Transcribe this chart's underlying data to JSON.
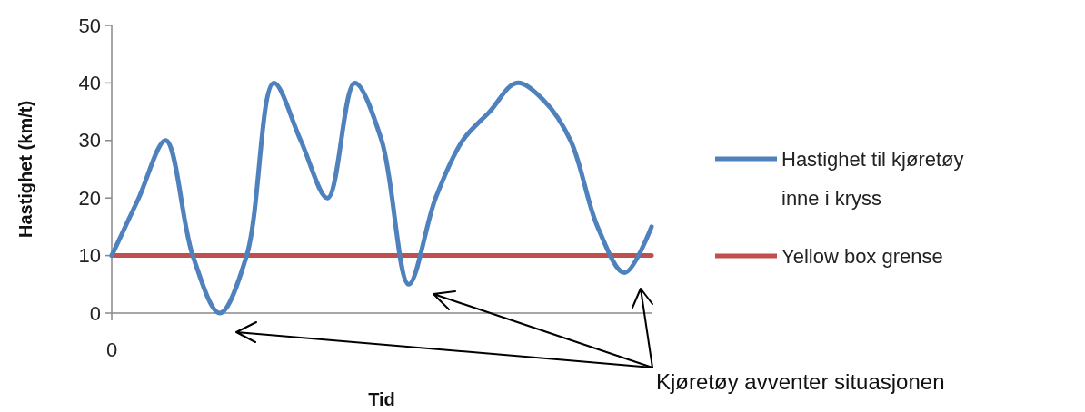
{
  "chart_data": {
    "type": "line",
    "ylabel": "Hastighet (km/t)",
    "xlabel": "Tid",
    "categories": [
      "0",
      null,
      null,
      null,
      null,
      null,
      null,
      null,
      null,
      null,
      null,
      null,
      null,
      null,
      null,
      null,
      null,
      null,
      null,
      null,
      null
    ],
    "ylim": [
      0,
      50
    ],
    "yticks": [
      0,
      10,
      20,
      30,
      40,
      50
    ],
    "grid": false,
    "legend": "right",
    "marker": "none",
    "line_style": "solid",
    "series": [
      {
        "name": "Hastighet til kjøretøy inne i kryss",
        "color": "#4f81bd",
        "values": [
          10,
          20,
          30,
          10,
          0,
          10,
          40,
          30,
          20,
          40,
          30,
          5,
          20,
          30,
          35,
          40,
          37,
          30,
          15,
          7,
          15
        ]
      },
      {
        "name": "Yellow box grense",
        "color": "#c0504d",
        "values": [
          10,
          10,
          10,
          10,
          10,
          10,
          10,
          10,
          10,
          10,
          10,
          10,
          10,
          10,
          10,
          10,
          10,
          10,
          10,
          10,
          10
        ]
      }
    ],
    "annotations": [
      "Kjøretøy avventer situasjonen"
    ]
  }
}
